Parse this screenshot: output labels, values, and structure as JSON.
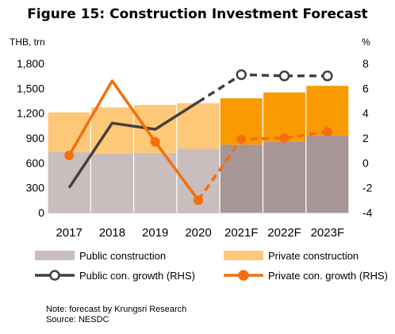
{
  "title": "Figure 15: Construction Investment Forecast",
  "left_unit": "THB, trn",
  "right_unit": "%",
  "note": "Note: forecast by Krungsri Research",
  "source": "Source: NESDC",
  "colors": {
    "public_actual": "#c9bdbd",
    "public_forecast": "#a89595",
    "private_actual": "#fdc877",
    "private_forecast": "#f99b00",
    "public_growth": "#463f3c",
    "private_growth": "#f46f0b"
  },
  "chart_data": {
    "type": "bar",
    "stacked": true,
    "categories": [
      "2017",
      "2018",
      "2019",
      "2020",
      "2021F",
      "2022F",
      "2023F"
    ],
    "forecast_start_index": 4,
    "y_left": {
      "min": 0,
      "max": 1800,
      "ticks": [
        "0",
        "300",
        "600",
        "900",
        "1,200",
        "1,500",
        "1,800"
      ]
    },
    "y_right": {
      "min": -4,
      "max": 8,
      "ticks": [
        "-4",
        "-2",
        "0",
        "2",
        "4",
        "6",
        "8"
      ]
    },
    "bar_series": [
      {
        "name": "Public construction",
        "values": [
          730,
          710,
          720,
          770,
          820,
          860,
          930
        ]
      },
      {
        "name": "Private construction",
        "values": [
          480,
          560,
          580,
          550,
          560,
          590,
          600
        ]
      }
    ],
    "line_series": [
      {
        "name": "Public con. growth (RHS)",
        "values": [
          -2.0,
          3.2,
          2.7,
          4.9,
          7.1,
          7.0,
          7.0
        ]
      },
      {
        "name": "Private con. growth (RHS)",
        "values": [
          0.6,
          6.6,
          1.7,
          -3.0,
          1.9,
          2.0,
          2.5
        ]
      }
    ],
    "legend_position": "bottom",
    "grid": false
  }
}
